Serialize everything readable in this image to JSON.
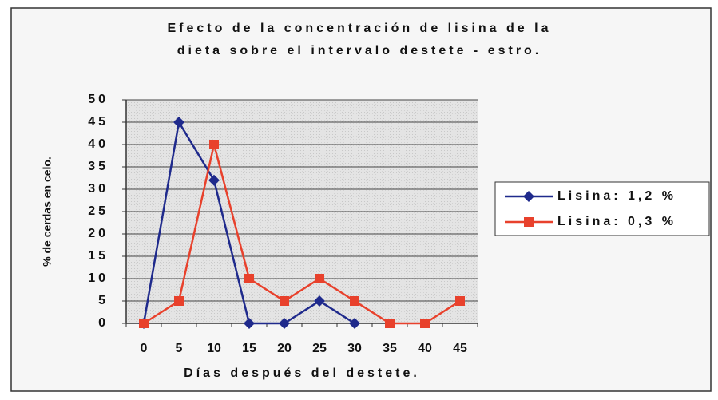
{
  "chart_data": {
    "type": "line",
    "title": [
      "Efecto de la concentración de lisina de la",
      "dieta sobre el intervalo destete - estro."
    ],
    "x_label": "Días después del destete.",
    "y_label": "% de cerdas en celo.",
    "x": [
      0,
      5,
      10,
      15,
      20,
      25,
      30,
      35,
      40,
      45
    ],
    "series": [
      {
        "name": "Lisina: 1,2 %",
        "color": "#1f2a8c",
        "marker": "diamond",
        "values": [
          0,
          45,
          32,
          0,
          0,
          5,
          0,
          null,
          null,
          null
        ]
      },
      {
        "name": "Lisina: 0,3 %",
        "color": "#e8412c",
        "marker": "square",
        "values": [
          0,
          5,
          40,
          10,
          5,
          10,
          5,
          0,
          0,
          5
        ]
      }
    ],
    "ylim": [
      0,
      50
    ],
    "yticks": [
      0,
      5,
      10,
      15,
      20,
      25,
      30,
      35,
      40,
      45,
      50
    ],
    "grid": true,
    "legend": "right"
  }
}
